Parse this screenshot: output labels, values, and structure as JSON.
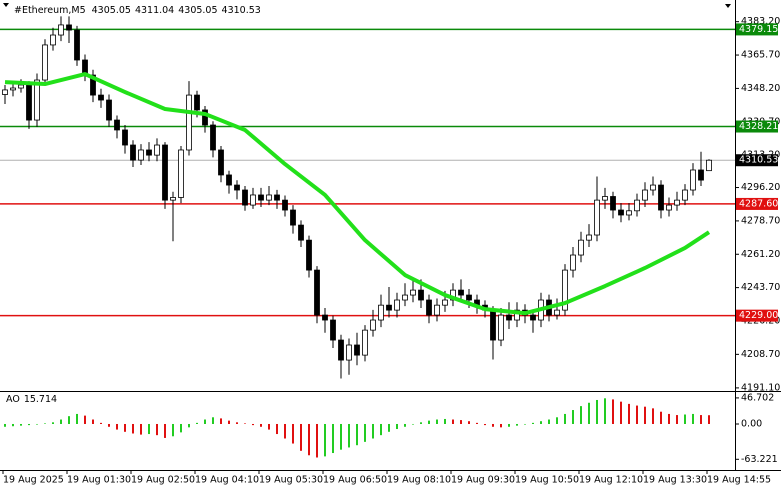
{
  "chart_data": {
    "type": "candlestick",
    "symbol": "#Ethereum,M5",
    "categories": [
      "19 Aug 2025",
      null,
      null,
      null,
      null,
      null,
      null,
      null,
      "19 Aug 01:30",
      null,
      null,
      null,
      null,
      null,
      null,
      null,
      "19 Aug 02:50",
      null,
      null,
      null,
      null,
      null,
      null,
      null,
      "19 Aug 04:10",
      null,
      null,
      null,
      null,
      null,
      null,
      null,
      "19 Aug 05:30",
      null,
      null,
      null,
      null,
      null,
      null,
      null,
      "19 Aug 06:50",
      null,
      null,
      null,
      null,
      null,
      null,
      null,
      "19 Aug 08:10",
      null,
      null,
      null,
      null,
      null,
      null,
      null,
      "19 Aug 09:30",
      null,
      null,
      null,
      null,
      null,
      null,
      null,
      "19 Aug 10:50",
      null,
      null,
      null,
      null,
      null,
      null,
      null,
      "19 Aug 12:10",
      null,
      null,
      null,
      null,
      null,
      null,
      null,
      "19 Aug 13:30",
      null,
      null,
      null,
      null,
      null,
      null,
      null,
      "19 Aug 14:55"
    ],
    "candles": [
      [
        4345.0,
        4350,
        4340,
        4347.4
      ],
      [
        4347.4,
        4352,
        4344,
        4348.4
      ],
      [
        4348.4,
        4353,
        4346,
        4350.0
      ],
      [
        4350.0,
        4352,
        4327,
        4331.6
      ],
      [
        4331.6,
        4356,
        4328,
        4352.6
      ],
      [
        4352.6,
        4374,
        4350,
        4371.0
      ],
      [
        4371.0,
        4380,
        4368,
        4376.2
      ],
      [
        4376.2,
        4386,
        4373,
        4381.5
      ],
      [
        4381.5,
        4386,
        4372,
        4378.8
      ],
      [
        4378.8,
        4381,
        4360,
        4363.1
      ],
      [
        4363.1,
        4366,
        4352,
        4355.2
      ],
      [
        4355.2,
        4358,
        4341,
        4344.7
      ],
      [
        4344.7,
        4348,
        4338,
        4342.1
      ],
      [
        4342.1,
        4345,
        4328,
        4331.6
      ],
      [
        4331.6,
        4334,
        4322,
        4326.4
      ],
      [
        4326.4,
        4329,
        4314,
        4318.5
      ],
      [
        4318.5,
        4321,
        4307,
        4310.6
      ],
      [
        4310.6,
        4319,
        4308,
        4315.9
      ],
      [
        4315.9,
        4320,
        4310,
        4313.2
      ],
      [
        4313.2,
        4322,
        4310,
        4318.5
      ],
      [
        4318.5,
        4320,
        4285,
        4289.6
      ],
      [
        4289.6,
        4294,
        4268,
        4291.0
      ],
      [
        4291.0,
        4318,
        4288,
        4315.9
      ],
      [
        4315.9,
        4352,
        4313,
        4344.7
      ],
      [
        4344.7,
        4347,
        4333,
        4336.9
      ],
      [
        4336.9,
        4339,
        4325,
        4329.0
      ],
      [
        4329.0,
        4331,
        4312,
        4315.9
      ],
      [
        4315.9,
        4318,
        4299,
        4302.8
      ],
      [
        4302.8,
        4305,
        4293,
        4297.5
      ],
      [
        4297.5,
        4300,
        4290,
        4294.9
      ],
      [
        4294.9,
        4297,
        4284,
        4287.0
      ],
      [
        4287.0,
        4296,
        4285,
        4292.3
      ],
      [
        4292.3,
        4296,
        4286,
        4289.6
      ],
      [
        4289.6,
        4297,
        4287,
        4292.3
      ],
      [
        4292.3,
        4295,
        4285,
        4289.6
      ],
      [
        4289.6,
        4292,
        4281,
        4284.4
      ],
      [
        4284.4,
        4287,
        4272,
        4276.5
      ],
      [
        4276.5,
        4279,
        4265,
        4268.6
      ],
      [
        4268.6,
        4271,
        4249,
        4252.9
      ],
      [
        4252.9,
        4255,
        4225,
        4229.3
      ],
      [
        4229.3,
        4233,
        4220,
        4226.7
      ],
      [
        4226.7,
        4229,
        4212,
        4216.2
      ],
      [
        4216.2,
        4219,
        4196,
        4205.7
      ],
      [
        4205.7,
        4217,
        4198,
        4213.6
      ],
      [
        4213.6,
        4220,
        4203,
        4208.3
      ],
      [
        4208.3,
        4224,
        4205,
        4221.4
      ],
      [
        4221.4,
        4232,
        4218,
        4226.7
      ],
      [
        4226.7,
        4240,
        4223,
        4234.5
      ],
      [
        4234.5,
        4244,
        4228,
        4231.9
      ],
      [
        4231.9,
        4241,
        4228,
        4237.2
      ],
      [
        4237.2,
        4246,
        4234,
        4239.8
      ],
      [
        4239.8,
        4248,
        4236,
        4242.4
      ],
      [
        4242.4,
        4248,
        4233,
        4237.2
      ],
      [
        4237.2,
        4240,
        4225,
        4229.3
      ],
      [
        4229.3,
        4238,
        4226,
        4234.5
      ],
      [
        4234.5,
        4242,
        4231,
        4237.2
      ],
      [
        4237.2,
        4246,
        4234,
        4242.4
      ],
      [
        4242.4,
        4248,
        4236,
        4239.8
      ],
      [
        4239.8,
        4243,
        4233,
        4237.2
      ],
      [
        4237.2,
        4240,
        4230,
        4234.5
      ],
      [
        4234.5,
        4237,
        4228,
        4231.9
      ],
      [
        4231.9,
        4234,
        4206,
        4216.2
      ],
      [
        4216.2,
        4233,
        4213,
        4229.3
      ],
      [
        4229.3,
        4236,
        4222,
        4226.7
      ],
      [
        4226.7,
        4236,
        4223,
        4231.9
      ],
      [
        4231.9,
        4235,
        4225,
        4229.3
      ],
      [
        4229.3,
        4232,
        4220,
        4226.7
      ],
      [
        4226.7,
        4241,
        4223,
        4237.2
      ],
      [
        4237.2,
        4240,
        4226,
        4229.3
      ],
      [
        4229.3,
        4238,
        4227,
        4231.9
      ],
      [
        4231.9,
        4256,
        4229,
        4252.9
      ],
      [
        4252.9,
        4265,
        4249,
        4260.8
      ],
      [
        4260.8,
        4273,
        4257,
        4268.6
      ],
      [
        4268.6,
        4277,
        4265,
        4271.3
      ],
      [
        4271.3,
        4302,
        4268,
        4289.6
      ],
      [
        4289.6,
        4296,
        4285,
        4291.5
      ],
      [
        4291.5,
        4294,
        4280,
        4284.4
      ],
      [
        4284.4,
        4288,
        4278,
        4281.8
      ],
      [
        4281.8,
        4288,
        4279,
        4284.0
      ],
      [
        4284.0,
        4293,
        4281,
        4289.6
      ],
      [
        4289.6,
        4299,
        4286,
        4294.9
      ],
      [
        4294.9,
        4302,
        4292,
        4297.5
      ],
      [
        4297.5,
        4300,
        4280,
        4284.4
      ],
      [
        4284.4,
        4291,
        4281,
        4287.0
      ],
      [
        4287.0,
        4294,
        4284,
        4289.6
      ],
      [
        4289.6,
        4298,
        4287,
        4294.9
      ],
      [
        4294.9,
        4309,
        4292,
        4305.4
      ],
      [
        4305.4,
        4315,
        4297,
        4300.1
      ],
      [
        4305.05,
        4311.04,
        4305.05,
        4310.53
      ]
    ],
    "up_fill": "#ffffff",
    "down_fill": "#000000",
    "candle_stroke": "#000000",
    "ma": {
      "color": "#22e01a",
      "x": [
        0,
        5,
        10,
        15,
        20,
        25,
        30,
        35,
        40,
        45,
        50,
        55,
        60,
        65,
        70,
        75,
        80,
        85,
        88
      ],
      "values": [
        4351.5,
        4350.5,
        4355.7,
        4346.3,
        4337.4,
        4334.8,
        4326.4,
        4308.5,
        4292.3,
        4268.6,
        4250.3,
        4239.8,
        4232.4,
        4230.3,
        4235.6,
        4244.5,
        4254.0,
        4264.5,
        4272.8
      ]
    },
    "ylim": [
      4190.0,
      4393.0
    ],
    "yticks": [
      {
        "value": 4383.2,
        "label": "4383.20"
      },
      {
        "value": 4365.7,
        "label": "4365.70"
      },
      {
        "value": 4348.2,
        "label": "4348.20"
      },
      {
        "value": 4330.7,
        "label": "4330.70"
      },
      {
        "value": 4313.2,
        "label": "4313.20"
      },
      {
        "value": 4296.2,
        "label": "4296.20"
      },
      {
        "value": 4278.7,
        "label": "4278.70"
      },
      {
        "value": 4261.2,
        "label": "4261.20"
      },
      {
        "value": 4243.7,
        "label": "4243.70"
      },
      {
        "value": 4226.2,
        "label": "4226.20"
      },
      {
        "value": 4208.7,
        "label": "4208.70"
      },
      {
        "value": 4191.1,
        "label": "4191.10"
      }
    ],
    "levels": [
      {
        "value": 4379.15,
        "color": "#0a8a0a"
      },
      {
        "value": 4328.21,
        "color": "#0a8a0a"
      },
      {
        "value": {
          "value": 4287.6,
          "label": "4287.60"
        },
        "color": "#e01010"
      },
      {
        "value": {
          "value": 4229.0,
          "label": "4229.00"
        },
        "color": "#e01010"
      }
    ],
    "current_price": {
      "value": 4310.53,
      "color": "#b0b0b0",
      "tag_color": "#000000"
    },
    "ao": {
      "name": "AO",
      "up_color": "#22cc22",
      "down_color": "#e01010",
      "values": [
        -5,
        -4,
        -3,
        -2,
        -1,
        1,
        3,
        8,
        14,
        18,
        15,
        8,
        2,
        -5,
        -10,
        -14,
        -17,
        -19,
        -18,
        -20,
        -25,
        -22,
        -15,
        -6,
        2,
        8,
        12,
        10,
        6,
        3,
        1,
        -2,
        -5,
        -10,
        -18,
        -26,
        -35,
        -48,
        -56,
        -60,
        -58,
        -52,
        -46,
        -42,
        -38,
        -32,
        -26,
        -20,
        -14,
        -9,
        -5,
        -1,
        3,
        6,
        8,
        9,
        8,
        7,
        5,
        2,
        -2,
        -5,
        -6,
        -5,
        -3,
        -1,
        2,
        5,
        8,
        12,
        18,
        25,
        32,
        38,
        43,
        46,
        44,
        40,
        36,
        33,
        31,
        28,
        22,
        18,
        16,
        17,
        18,
        16,
        15.714
      ],
      "ylim": [
        -82.4,
        55.5
      ],
      "yticks": [
        46.702,
        {
          "value": 0,
          "label": "0.00"
        },
        -63.221
      ]
    }
  }
}
